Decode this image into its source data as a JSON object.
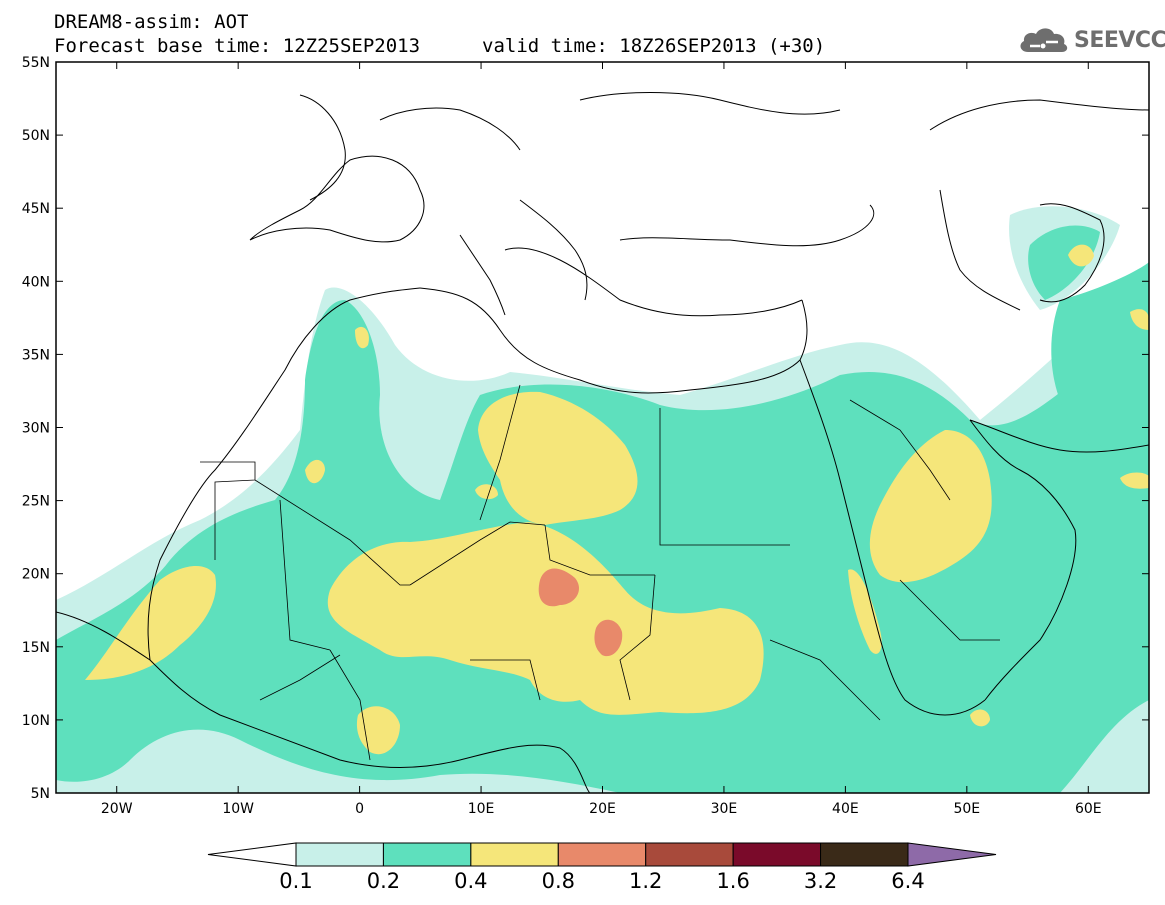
{
  "title_line1": "DREAM8-assim: AOT",
  "title_line2": "Forecast base time: 12Z25SEP2013",
  "valid_time": "valid time: 18Z26SEP2013 (+30)",
  "logo_text": "SEEVCCC",
  "map": {
    "lon_range": [
      -25,
      65
    ],
    "lat_range": [
      5,
      55
    ],
    "lat_ticks": [
      "55N",
      "50N",
      "45N",
      "40N",
      "35N",
      "30N",
      "25N",
      "20N",
      "15N",
      "10N",
      "5N"
    ],
    "lon_ticks": [
      "20W",
      "10W",
      "0",
      "10E",
      "20E",
      "30E",
      "40E",
      "50E",
      "60E"
    ]
  },
  "colorbar": {
    "labels": [
      "0.1",
      "0.2",
      "0.4",
      "0.8",
      "1.2",
      "1.6",
      "3.2",
      "6.4"
    ],
    "colors": [
      "#ffffff",
      "#c8f0e9",
      "#5ee0bd",
      "#f5e67a",
      "#e8896a",
      "#a84a3b",
      "#7a0a2a",
      "#3a2a18",
      "#8e6aa8"
    ]
  }
}
